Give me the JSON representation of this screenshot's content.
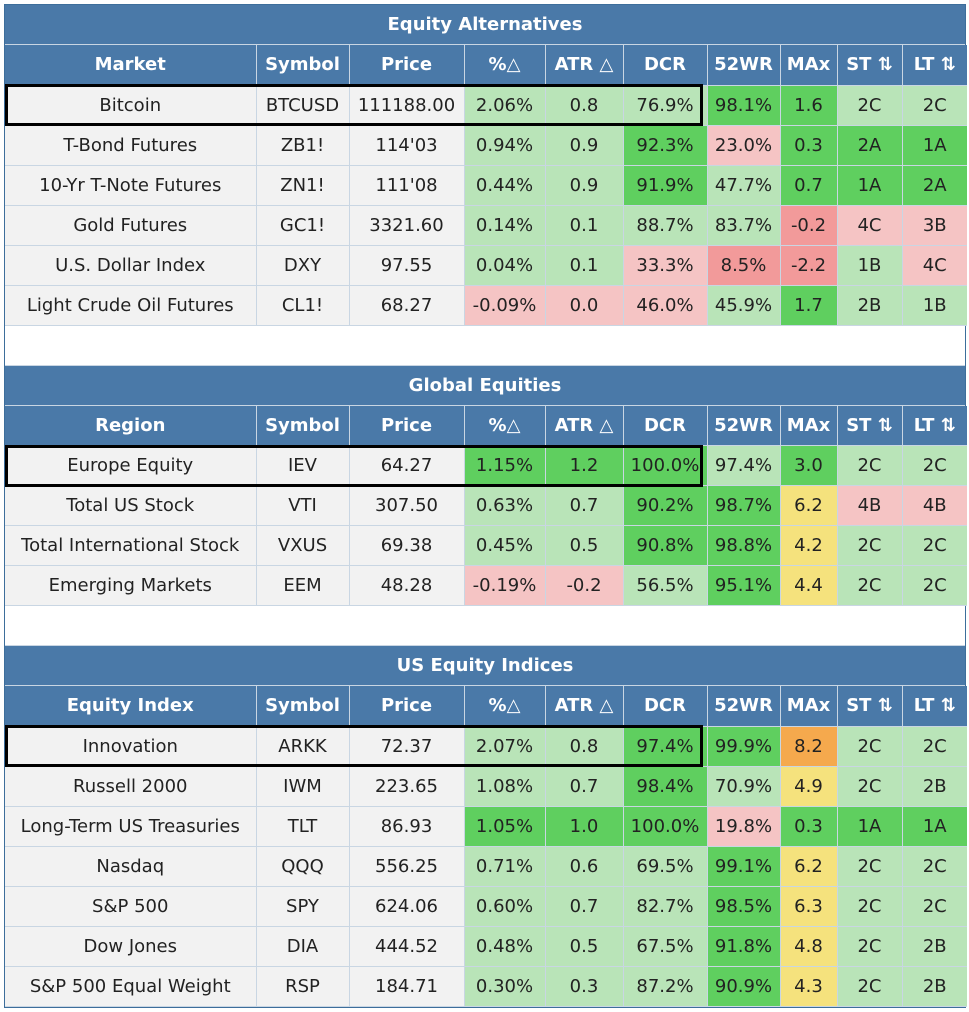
{
  "colors": {
    "header_bg": "#4a79a8",
    "dark_green": "#5fcf5f",
    "light_green": "#b9e4b8",
    "pink": "#f5c4c4",
    "red": "#f29a9a",
    "yellow": "#f5e27d",
    "orange": "#f5a94d",
    "neutral": "#f2f2f2"
  },
  "sections": [
    {
      "title": "Equity Alternatives",
      "headers": [
        "Market",
        "Symbol",
        "Price",
        "%△",
        "ATR △",
        "DCR",
        "52WR",
        "MAx",
        "ST ⇅",
        "LT ⇅"
      ],
      "rows": [
        {
          "cells": [
            "Bitcoin",
            "BTCUSD",
            "111188.00",
            "2.06%",
            "0.8",
            "76.9%",
            "98.1%",
            "1.6",
            "2C",
            "2C"
          ],
          "shades": [
            "n",
            "n",
            "n",
            "lg",
            "lg",
            "lg",
            "dg",
            "dg",
            "lg",
            "lg"
          ]
        },
        {
          "cells": [
            "T-Bond Futures",
            "ZB1!",
            "114'03",
            "0.94%",
            "0.9",
            "92.3%",
            "23.0%",
            "0.3",
            "2A",
            "1A"
          ],
          "shades": [
            "n",
            "n",
            "n",
            "lg",
            "lg",
            "dg",
            "pk",
            "dg",
            "dg",
            "dg"
          ]
        },
        {
          "cells": [
            "10-Yr T-Note Futures",
            "ZN1!",
            "111'08",
            "0.44%",
            "0.9",
            "91.9%",
            "47.7%",
            "0.7",
            "1A",
            "2A"
          ],
          "shades": [
            "n",
            "n",
            "n",
            "lg",
            "lg",
            "dg",
            "lg",
            "dg",
            "dg",
            "dg"
          ]
        },
        {
          "cells": [
            "Gold Futures",
            "GC1!",
            "3321.60",
            "0.14%",
            "0.1",
            "88.7%",
            "83.7%",
            "-0.2",
            "4C",
            "3B"
          ],
          "shades": [
            "n",
            "n",
            "n",
            "lg",
            "lg",
            "lg",
            "lg",
            "rd",
            "pk",
            "pk"
          ]
        },
        {
          "cells": [
            "U.S. Dollar Index",
            "DXY",
            "97.55",
            "0.04%",
            "0.1",
            "33.3%",
            "8.5%",
            "-2.2",
            "1B",
            "4C"
          ],
          "shades": [
            "n",
            "n",
            "n",
            "lg",
            "lg",
            "pk",
            "rd",
            "rd",
            "lg",
            "pk"
          ]
        },
        {
          "cells": [
            "Light Crude Oil Futures",
            "CL1!",
            "68.27",
            "-0.09%",
            "0.0",
            "46.0%",
            "45.9%",
            "1.7",
            "2B",
            "1B"
          ],
          "shades": [
            "n",
            "n",
            "n",
            "pk",
            "pk",
            "pk",
            "lg",
            "dg",
            "lg",
            "lg"
          ]
        }
      ]
    },
    {
      "title": "Global Equities",
      "headers": [
        "Region",
        "Symbol",
        "Price",
        "%△",
        "ATR △",
        "DCR",
        "52WR",
        "MAx",
        "ST ⇅",
        "LT ⇅"
      ],
      "rows": [
        {
          "cells": [
            "Europe Equity",
            "IEV",
            "64.27",
            "1.15%",
            "1.2",
            "100.0%",
            "97.4%",
            "3.0",
            "2C",
            "2C"
          ],
          "shades": [
            "n",
            "n",
            "n",
            "dg",
            "dg",
            "dg",
            "lg",
            "dg",
            "lg",
            "lg"
          ]
        },
        {
          "cells": [
            "Total US Stock",
            "VTI",
            "307.50",
            "0.63%",
            "0.7",
            "90.2%",
            "98.7%",
            "6.2",
            "4B",
            "4B"
          ],
          "shades": [
            "n",
            "n",
            "n",
            "lg",
            "lg",
            "dg",
            "dg",
            "yl",
            "pk",
            "pk"
          ]
        },
        {
          "cells": [
            "Total International Stock",
            "VXUS",
            "69.38",
            "0.45%",
            "0.5",
            "90.8%",
            "98.8%",
            "4.2",
            "2C",
            "2C"
          ],
          "shades": [
            "n",
            "n",
            "n",
            "lg",
            "lg",
            "dg",
            "dg",
            "yl",
            "lg",
            "lg"
          ]
        },
        {
          "cells": [
            "Emerging Markets",
            "EEM",
            "48.28",
            "-0.19%",
            "-0.2",
            "56.5%",
            "95.1%",
            "4.4",
            "2C",
            "2C"
          ],
          "shades": [
            "n",
            "n",
            "n",
            "pk",
            "pk",
            "lg",
            "dg",
            "yl",
            "lg",
            "lg"
          ]
        }
      ]
    },
    {
      "title": "US Equity Indices",
      "headers": [
        "Equity Index",
        "Symbol",
        "Price",
        "%△",
        "ATR △",
        "DCR",
        "52WR",
        "MAx",
        "ST ⇅",
        "LT ⇅"
      ],
      "rows": [
        {
          "cells": [
            "Innovation",
            "ARKK",
            "72.37",
            "2.07%",
            "0.8",
            "97.4%",
            "99.9%",
            "8.2",
            "2C",
            "2C"
          ],
          "shades": [
            "n",
            "n",
            "n",
            "lg",
            "lg",
            "dg",
            "dg",
            "or",
            "lg",
            "lg"
          ]
        },
        {
          "cells": [
            "Russell 2000",
            "IWM",
            "223.65",
            "1.08%",
            "0.7",
            "98.4%",
            "70.9%",
            "4.9",
            "2C",
            "2B"
          ],
          "shades": [
            "n",
            "n",
            "n",
            "lg",
            "lg",
            "dg",
            "lg",
            "yl",
            "lg",
            "lg"
          ]
        },
        {
          "cells": [
            "Long-Term US Treasuries",
            "TLT",
            "86.93",
            "1.05%",
            "1.0",
            "100.0%",
            "19.8%",
            "0.3",
            "1A",
            "1A"
          ],
          "shades": [
            "n",
            "n",
            "n",
            "dg",
            "dg",
            "dg",
            "pk",
            "dg",
            "dg",
            "dg"
          ]
        },
        {
          "cells": [
            "Nasdaq",
            "QQQ",
            "556.25",
            "0.71%",
            "0.6",
            "69.5%",
            "99.1%",
            "6.2",
            "2C",
            "2C"
          ],
          "shades": [
            "n",
            "n",
            "n",
            "lg",
            "lg",
            "lg",
            "dg",
            "yl",
            "lg",
            "lg"
          ]
        },
        {
          "cells": [
            "S&P 500",
            "SPY",
            "624.06",
            "0.60%",
            "0.7",
            "82.7%",
            "98.5%",
            "6.3",
            "2C",
            "2C"
          ],
          "shades": [
            "n",
            "n",
            "n",
            "lg",
            "lg",
            "lg",
            "dg",
            "yl",
            "lg",
            "lg"
          ]
        },
        {
          "cells": [
            "Dow Jones",
            "DIA",
            "444.52",
            "0.48%",
            "0.5",
            "67.5%",
            "91.8%",
            "4.8",
            "2C",
            "2B"
          ],
          "shades": [
            "n",
            "n",
            "n",
            "lg",
            "lg",
            "lg",
            "dg",
            "yl",
            "lg",
            "lg"
          ]
        },
        {
          "cells": [
            "S&P 500 Equal Weight",
            "RSP",
            "184.71",
            "0.30%",
            "0.3",
            "87.2%",
            "90.9%",
            "4.3",
            "2C",
            "2B"
          ],
          "shades": [
            "n",
            "n",
            "n",
            "lg",
            "lg",
            "lg",
            "dg",
            "yl",
            "lg",
            "lg"
          ]
        }
      ]
    }
  ]
}
